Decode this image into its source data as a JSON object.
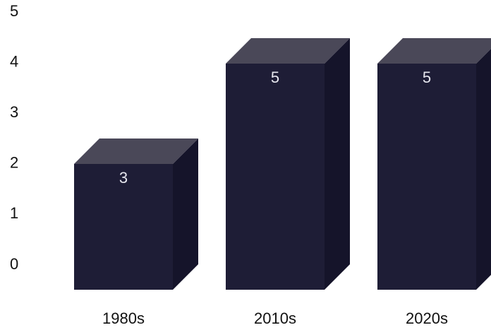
{
  "chart_data": {
    "type": "bar",
    "style": "3d",
    "categories": [
      "1980s",
      "2010s",
      "2020s"
    ],
    "values": [
      3,
      5,
      5
    ],
    "data_labels": [
      "3",
      "5",
      "5"
    ],
    "title": "",
    "xlabel": "",
    "ylabel": "",
    "ylim": [
      0,
      5
    ],
    "yticks": [
      "0",
      "1",
      "2",
      "3",
      "4",
      "5"
    ],
    "grid": false,
    "legend": "none",
    "colors": {
      "front": "#1e1d36",
      "top": "#4a4858",
      "side": "#15142a"
    }
  }
}
